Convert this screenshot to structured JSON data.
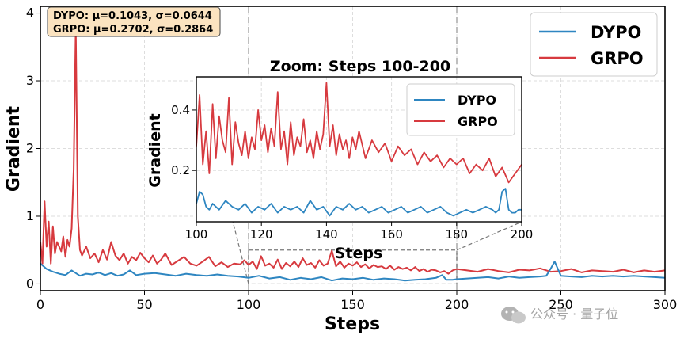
{
  "chart_data": [
    {
      "type": "line",
      "xlabel": "Steps",
      "ylabel": "Gradient",
      "xlim": [
        0,
        300
      ],
      "ylim": [
        -0.1,
        4.1
      ],
      "xticks": [
        "0",
        "50",
        "100",
        "150",
        "200",
        "250",
        "300"
      ],
      "yticks": [
        "0",
        "1",
        "2",
        "3",
        "4"
      ],
      "grid": true,
      "legend_position": "top-right",
      "stats_box": {
        "line1": "DYPO: μ=0.1043, σ=0.0644",
        "line2": "GRPO: μ=0.2702, σ=0.2864"
      },
      "zoom_region": {
        "x": [
          100,
          200
        ],
        "y": [
          0,
          0.5
        ]
      },
      "series": [
        {
          "name": "DYPO",
          "color": "#2e86c1",
          "x": [
            0,
            3,
            6,
            9,
            12,
            15,
            17,
            19,
            22,
            25,
            28,
            31,
            34,
            37,
            40,
            43,
            46,
            50,
            55,
            60,
            65,
            70,
            75,
            80,
            85,
            90,
            95,
            100,
            105,
            110,
            115,
            120,
            125,
            130,
            135,
            140,
            145,
            150,
            155,
            160,
            165,
            170,
            175,
            180,
            185,
            190,
            193,
            195,
            198,
            200,
            205,
            210,
            215,
            220,
            225,
            230,
            235,
            240,
            243,
            245,
            247,
            250,
            255,
            260,
            265,
            270,
            275,
            280,
            285,
            290,
            295,
            300
          ],
          "y": [
            0.3,
            0.22,
            0.18,
            0.15,
            0.13,
            0.2,
            0.16,
            0.12,
            0.15,
            0.14,
            0.17,
            0.13,
            0.16,
            0.12,
            0.14,
            0.2,
            0.13,
            0.15,
            0.16,
            0.14,
            0.12,
            0.15,
            0.13,
            0.12,
            0.14,
            0.12,
            0.11,
            0.09,
            0.12,
            0.08,
            0.1,
            0.06,
            0.09,
            0.07,
            0.1,
            0.05,
            0.08,
            0.07,
            0.09,
            0.06,
            0.08,
            0.07,
            0.05,
            0.06,
            0.07,
            0.09,
            0.13,
            0.06,
            0.06,
            0.07,
            0.08,
            0.09,
            0.1,
            0.08,
            0.11,
            0.09,
            0.1,
            0.11,
            0.12,
            0.22,
            0.33,
            0.12,
            0.11,
            0.1,
            0.12,
            0.11,
            0.12,
            0.11,
            0.12,
            0.11,
            0.1,
            0.09
          ]
        },
        {
          "name": "GRPO",
          "color": "#d73a3f",
          "x": [
            0,
            1,
            2,
            3,
            4,
            5,
            6,
            7,
            8,
            9,
            10,
            11,
            12,
            13,
            14,
            15,
            16,
            17,
            18,
            19,
            20,
            22,
            24,
            26,
            28,
            30,
            32,
            34,
            36,
            38,
            40,
            42,
            44,
            46,
            48,
            50,
            52,
            54,
            56,
            58,
            60,
            63,
            66,
            69,
            72,
            75,
            78,
            81,
            84,
            87,
            90,
            93,
            96,
            98,
            100,
            102,
            104,
            106,
            108,
            110,
            112,
            114,
            116,
            118,
            120,
            122,
            124,
            126,
            128,
            130,
            132,
            134,
            136,
            138,
            140,
            142,
            144,
            146,
            148,
            150,
            152,
            154,
            156,
            158,
            160,
            162,
            164,
            166,
            168,
            170,
            172,
            174,
            176,
            178,
            180,
            182,
            184,
            186,
            188,
            190,
            192,
            194,
            196,
            198,
            200,
            205,
            210,
            215,
            220,
            225,
            230,
            235,
            240,
            245,
            250,
            255,
            260,
            265,
            270,
            275,
            280,
            285,
            290,
            295,
            300
          ],
          "y": [
            0.62,
            0.3,
            1.22,
            0.55,
            0.92,
            0.3,
            0.85,
            0.45,
            0.62,
            0.55,
            0.48,
            0.7,
            0.4,
            0.65,
            0.55,
            0.82,
            1.7,
            3.8,
            1.0,
            0.5,
            0.42,
            0.55,
            0.38,
            0.45,
            0.32,
            0.5,
            0.36,
            0.62,
            0.42,
            0.35,
            0.45,
            0.3,
            0.4,
            0.35,
            0.46,
            0.38,
            0.32,
            0.42,
            0.3,
            0.36,
            0.45,
            0.28,
            0.34,
            0.4,
            0.3,
            0.27,
            0.33,
            0.4,
            0.26,
            0.32,
            0.25,
            0.3,
            0.29,
            0.35,
            0.28,
            0.33,
            0.22,
            0.41,
            0.27,
            0.3,
            0.24,
            0.36,
            0.22,
            0.31,
            0.26,
            0.33,
            0.25,
            0.38,
            0.28,
            0.31,
            0.24,
            0.35,
            0.27,
            0.3,
            0.49,
            0.26,
            0.33,
            0.24,
            0.3,
            0.27,
            0.32,
            0.25,
            0.29,
            0.23,
            0.28,
            0.25,
            0.26,
            0.22,
            0.27,
            0.21,
            0.25,
            0.22,
            0.24,
            0.2,
            0.25,
            0.19,
            0.22,
            0.18,
            0.21,
            0.2,
            0.17,
            0.19,
            0.15,
            0.2,
            0.22,
            0.2,
            0.18,
            0.22,
            0.19,
            0.17,
            0.21,
            0.2,
            0.23,
            0.18,
            0.19,
            0.22,
            0.17,
            0.2,
            0.19,
            0.18,
            0.21,
            0.17,
            0.2,
            0.18,
            0.2
          ]
        }
      ]
    },
    {
      "type": "line",
      "title": "Zoom: Steps 100-200",
      "xlabel": "Steps",
      "ylabel": "Gradient",
      "xlim": [
        100,
        200
      ],
      "ylim": [
        0.03,
        0.51
      ],
      "xticks": [
        "100",
        "120",
        "140",
        "160",
        "180",
        "200"
      ],
      "yticks": [
        "0.2",
        "0.4"
      ],
      "grid": true,
      "legend_position": "top-right",
      "series": [
        {
          "name": "DYPO",
          "color": "#2e86c1",
          "x": [
            100,
            101,
            102,
            103,
            104,
            105,
            107,
            109,
            111,
            113,
            115,
            117,
            119,
            121,
            123,
            125,
            127,
            129,
            131,
            133,
            135,
            137,
            139,
            141,
            143,
            145,
            147,
            149,
            151,
            153,
            155,
            157,
            159,
            161,
            163,
            165,
            167,
            169,
            171,
            173,
            175,
            177,
            179,
            181,
            183,
            185,
            187,
            189,
            191,
            192,
            193,
            194,
            195,
            196,
            197,
            198,
            199,
            200
          ],
          "y": [
            0.09,
            0.13,
            0.12,
            0.08,
            0.07,
            0.09,
            0.07,
            0.1,
            0.08,
            0.07,
            0.09,
            0.06,
            0.08,
            0.07,
            0.09,
            0.06,
            0.08,
            0.07,
            0.08,
            0.06,
            0.1,
            0.07,
            0.08,
            0.05,
            0.08,
            0.07,
            0.09,
            0.07,
            0.08,
            0.06,
            0.07,
            0.08,
            0.06,
            0.07,
            0.08,
            0.06,
            0.07,
            0.08,
            0.06,
            0.07,
            0.08,
            0.06,
            0.05,
            0.06,
            0.07,
            0.06,
            0.07,
            0.08,
            0.07,
            0.06,
            0.07,
            0.13,
            0.14,
            0.07,
            0.06,
            0.06,
            0.07,
            0.07
          ]
        },
        {
          "name": "GRPO",
          "color": "#d73a3f",
          "x": [
            100,
            101,
            102,
            103,
            104,
            105,
            106,
            107,
            108,
            109,
            110,
            111,
            112,
            113,
            114,
            115,
            116,
            117,
            118,
            119,
            120,
            121,
            122,
            123,
            124,
            125,
            126,
            127,
            128,
            129,
            130,
            131,
            132,
            133,
            134,
            135,
            136,
            137,
            138,
            139,
            140,
            141,
            142,
            143,
            144,
            145,
            146,
            147,
            148,
            149,
            150,
            152,
            154,
            156,
            158,
            160,
            162,
            164,
            166,
            168,
            170,
            172,
            174,
            176,
            178,
            180,
            182,
            184,
            186,
            188,
            190,
            192,
            194,
            196,
            198,
            200
          ],
          "y": [
            0.28,
            0.45,
            0.22,
            0.33,
            0.19,
            0.42,
            0.24,
            0.38,
            0.3,
            0.26,
            0.44,
            0.22,
            0.36,
            0.29,
            0.25,
            0.33,
            0.24,
            0.31,
            0.27,
            0.4,
            0.3,
            0.35,
            0.26,
            0.34,
            0.28,
            0.46,
            0.27,
            0.33,
            0.22,
            0.36,
            0.25,
            0.31,
            0.28,
            0.37,
            0.26,
            0.3,
            0.24,
            0.33,
            0.27,
            0.32,
            0.49,
            0.28,
            0.35,
            0.25,
            0.32,
            0.27,
            0.3,
            0.24,
            0.31,
            0.27,
            0.33,
            0.24,
            0.3,
            0.26,
            0.29,
            0.23,
            0.28,
            0.25,
            0.27,
            0.22,
            0.26,
            0.23,
            0.25,
            0.21,
            0.24,
            0.22,
            0.24,
            0.19,
            0.22,
            0.2,
            0.24,
            0.18,
            0.21,
            0.16,
            0.19,
            0.22
          ]
        }
      ]
    }
  ],
  "watermark": {
    "text": "公众号 · 量子位",
    "icon": "wechat-icon"
  }
}
